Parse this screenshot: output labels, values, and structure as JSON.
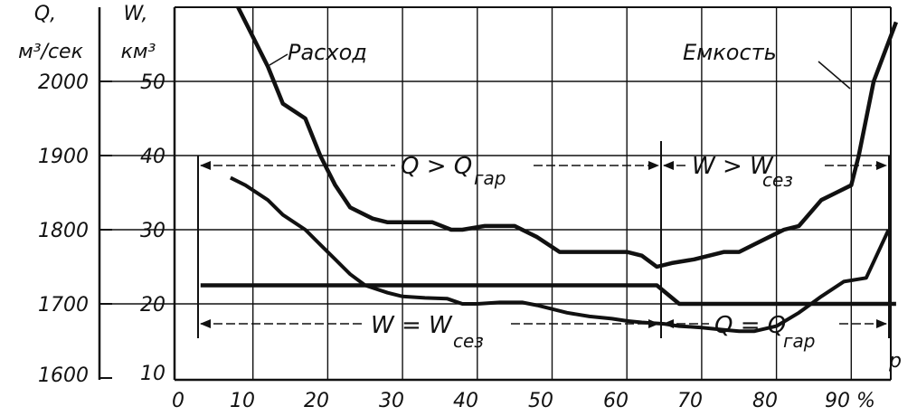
{
  "chart_data": {
    "type": "line",
    "q_axis": {
      "title_1": "Q,",
      "title_2": "м³/сек",
      "ticks": [
        "2000",
        "1900",
        "1800",
        "1700",
        "1600"
      ]
    },
    "w_axis": {
      "title_1": "W,",
      "title_2": "км³",
      "ticks": [
        "50",
        "40",
        "30",
        "20",
        "10"
      ],
      "range": [
        10,
        60
      ]
    },
    "x_axis": {
      "ticks": [
        "0",
        "10",
        "20",
        "30",
        "40",
        "50",
        "60",
        "70",
        "80",
        "90 %"
      ],
      "label": "p",
      "range": [
        0,
        96
      ]
    },
    "grid": true,
    "series": [
      {
        "name": "Расход",
        "x": [
          7,
          9,
          12,
          14,
          17,
          19,
          21,
          23,
          25,
          28,
          30,
          33,
          36,
          38,
          40,
          43,
          46,
          48,
          50,
          52,
          55,
          58,
          60,
          62,
          65,
          67,
          70,
          73,
          75,
          77,
          80,
          83,
          86,
          89,
          92,
          95
        ],
        "y": [
          1870,
          1860,
          1840,
          1820,
          1800,
          1780,
          1760,
          1740,
          1725,
          1715,
          1710,
          1708,
          1707,
          1700,
          1700,
          1702,
          1702,
          1698,
          1693,
          1688,
          1683,
          1680,
          1677,
          1675,
          1673,
          1670,
          1668,
          1665,
          1663,
          1663,
          1670,
          1688,
          1710,
          1730,
          1735,
          1800
        ]
      },
      {
        "name": "Емкость",
        "x": [
          8,
          9.5,
          12,
          14,
          17,
          19,
          21,
          23,
          26,
          28,
          31,
          34,
          36.5,
          38,
          41,
          43,
          45,
          48,
          51,
          54,
          56,
          60,
          62,
          64,
          66,
          69,
          71,
          73,
          75,
          77,
          79,
          81,
          83,
          86,
          88,
          90,
          91,
          93,
          96
        ],
        "y": [
          60,
          57,
          52,
          47,
          45,
          40,
          36,
          33,
          31.5,
          31,
          31,
          31,
          30,
          30,
          30.5,
          30.5,
          30.5,
          29,
          27,
          27,
          27,
          27,
          26.5,
          25,
          25.5,
          26,
          26.5,
          27,
          27,
          28,
          29,
          30,
          30.5,
          34,
          35,
          36,
          40,
          50,
          58
        ]
      }
    ],
    "guaranteed_flow": {
      "name": "Q гар",
      "x": [
        3,
        64,
        67,
        96
      ],
      "q": [
        1725,
        1725,
        1700,
        1700
      ]
    },
    "annotations": {
      "label_flow": "Расход",
      "label_storage": "Емкость",
      "q_gt": "Q > Q",
      "q_gt_sub": "гар",
      "w_gt": "W > W",
      "w_gt_sub": "сез",
      "w_eq": "W = W",
      "w_eq_sub": "сез",
      "q_eq": "Q = Q",
      "q_eq_sub": "гар"
    }
  }
}
